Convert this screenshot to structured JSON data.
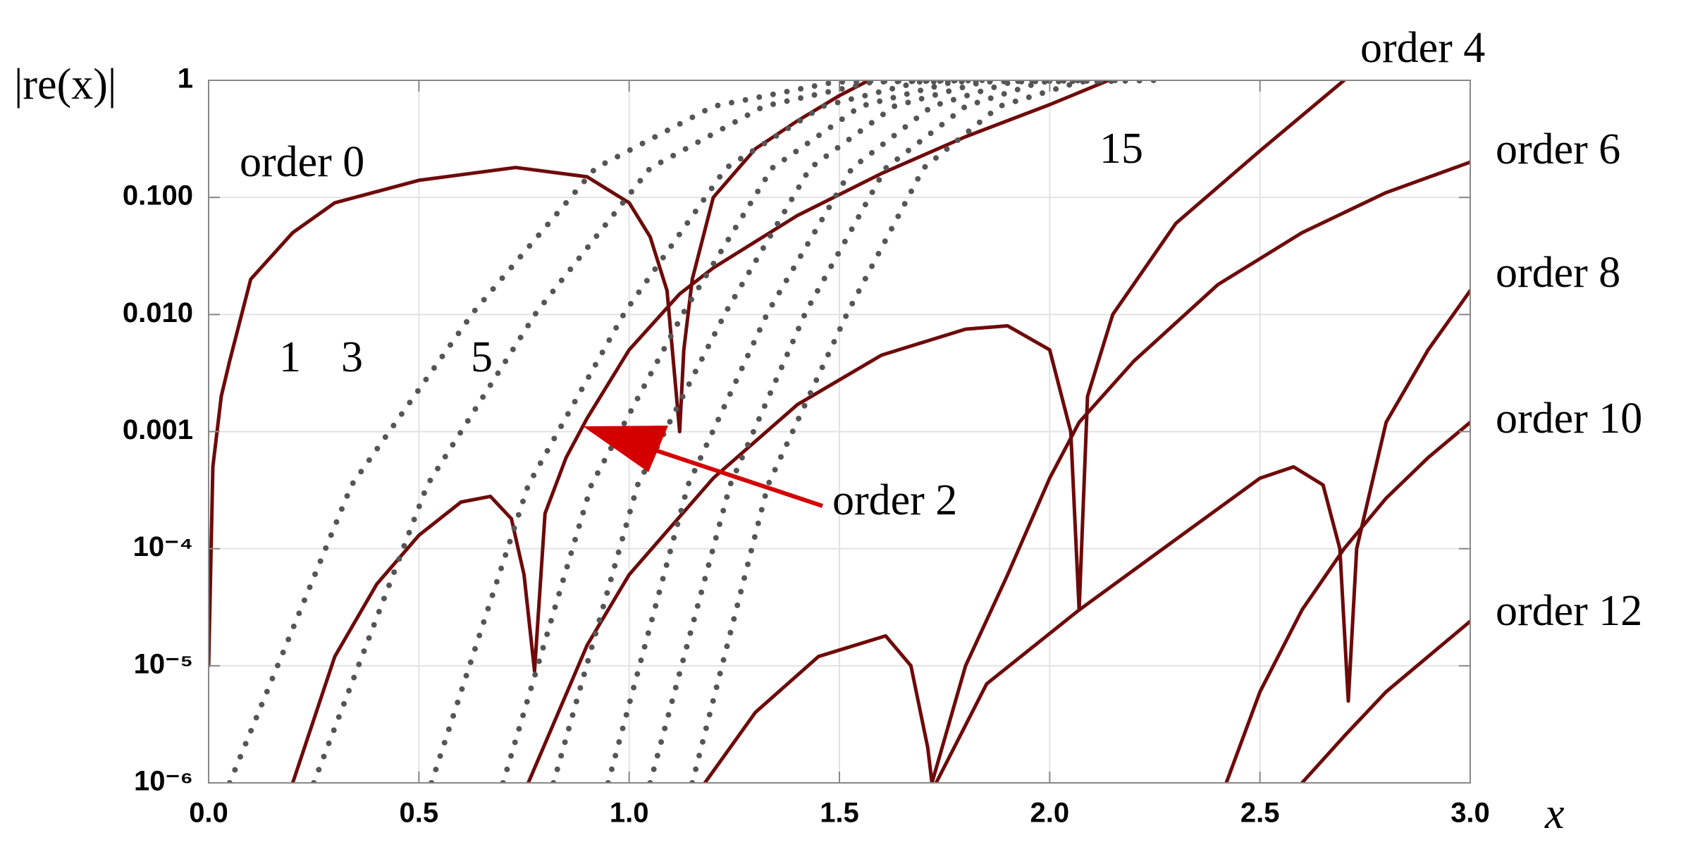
{
  "chart_data": {
    "type": "line",
    "y_label": "|re(x)|",
    "x_label": "x",
    "log_y": true,
    "grid": true,
    "xlim": [
      0,
      3
    ],
    "ylim": [
      1e-06,
      1
    ],
    "xticks": [
      {
        "value": 0,
        "label": "0.0"
      },
      0.5,
      {
        "value": 1,
        "label": "1.0"
      },
      1.5,
      {
        "value": 2,
        "label": "2.0"
      },
      2.5,
      {
        "value": 3,
        "label": "3.0"
      }
    ],
    "yticks": [
      {
        "value": 1e-06,
        "label": "10⁻⁶"
      },
      {
        "value": 1e-05,
        "label": "10⁻⁵"
      },
      {
        "value": 0.0001,
        "label": "10⁻⁴"
      },
      0.001,
      {
        "value": 0.01,
        "label": "0.010"
      },
      {
        "value": 0.1,
        "label": "0.100"
      },
      1
    ],
    "series": [
      {
        "name": "order 0",
        "color": "#6e0a0a",
        "line_style": "solid",
        "x": [
          0,
          0.01,
          0.03,
          0.05,
          0.1,
          0.2,
          0.3,
          0.5,
          0.73,
          0.9,
          1.0,
          1.05,
          1.09,
          1.12,
          1.13,
          1.15,
          1.2,
          1.3,
          1.4,
          1.5,
          1.57
        ],
        "values": [
          1e-05,
          0.0005,
          0.002,
          0.004,
          0.02,
          0.05,
          0.09,
          0.14,
          0.18,
          0.15,
          0.09,
          0.046,
          0.016,
          0.001,
          0.005,
          0.02,
          0.1,
          0.26,
          0.45,
          0.74,
          1
        ]
      },
      {
        "name": "order 2",
        "color": "#6e0a0a",
        "line_style": "solid",
        "x": [
          0.2,
          0.3,
          0.4,
          0.5,
          0.6,
          0.67,
          0.72,
          0.75,
          0.775,
          0.8,
          0.85,
          0.9,
          1.0,
          1.12,
          1.2,
          1.4,
          1.6,
          1.8,
          2.0,
          2.14
        ],
        "values": [
          1e-06,
          1.2e-05,
          5e-05,
          0.00013,
          0.00025,
          0.00028,
          0.00018,
          6e-05,
          9e-06,
          0.0002,
          0.0006,
          0.0013,
          0.005,
          0.015,
          0.025,
          0.07,
          0.16,
          0.33,
          0.62,
          1
        ]
      },
      {
        "name": "order 4",
        "color": "#6e0a0a",
        "line_style": "solid",
        "x": [
          0.76,
          0.9,
          1.0,
          1.2,
          1.4,
          1.6,
          1.8,
          1.9,
          2.0,
          2.05,
          2.07,
          2.09,
          2.15,
          2.3,
          2.5,
          2.7
        ],
        "values": [
          1e-06,
          1.5e-05,
          6e-05,
          0.0004,
          0.0017,
          0.0045,
          0.0075,
          0.008,
          0.005,
          0.001,
          3e-05,
          0.002,
          0.01,
          0.06,
          0.25,
          1
        ]
      },
      {
        "name": "order 6",
        "color": "#6e0a0a",
        "line_style": "solid",
        "x": [
          1.18,
          1.3,
          1.45,
          1.61,
          1.67,
          1.71,
          1.72,
          1.8,
          1.9,
          2.0,
          2.07,
          2.2,
          2.4,
          2.6,
          2.8,
          3.0
        ],
        "values": [
          1e-06,
          4e-06,
          1.2e-05,
          1.8e-05,
          1e-05,
          2e-06,
          1e-06,
          1e-05,
          6e-05,
          0.0004,
          0.0012,
          0.004,
          0.018,
          0.05,
          0.11,
          0.2
        ]
      },
      {
        "name": "order 8",
        "color": "#6e0a0a",
        "line_style": "solid",
        "x": [
          1.73,
          1.85,
          2.07,
          2.3,
          2.5,
          2.58,
          2.65,
          2.69,
          2.71,
          2.73,
          2.8,
          2.9,
          3.0
        ],
        "values": [
          1e-06,
          7e-06,
          3e-05,
          0.00012,
          0.0004,
          0.0005,
          0.00035,
          0.0001,
          5e-06,
          0.0001,
          0.0012,
          0.005,
          0.016
        ]
      },
      {
        "name": "order 10",
        "color": "#6e0a0a",
        "line_style": "solid",
        "x": [
          2.42,
          2.5,
          2.6,
          2.7,
          2.8,
          2.9,
          3.0
        ],
        "values": [
          1e-06,
          6e-06,
          3e-05,
          0.0001,
          0.00027,
          0.0006,
          0.0012
        ]
      },
      {
        "name": "order 12",
        "color": "#6e0a0a",
        "line_style": "solid",
        "x": [
          2.6,
          2.7,
          2.8,
          2.9,
          3.0
        ],
        "values": [
          1e-06,
          2.5e-06,
          6e-06,
          1.2e-05,
          2.4e-05
        ]
      },
      {
        "name": "1",
        "color": "#555555",
        "line_style": "dotted",
        "x": [
          0.05,
          0.34,
          0.63,
          0.92,
          1.2,
          1.49,
          1.78
        ],
        "values": [
          1e-06,
          0.00035,
          0.0105,
          0.178,
          0.6,
          0.97,
          1
        ]
      },
      {
        "name": "3",
        "color": "#555555",
        "line_style": "dotted",
        "x": [
          0.25,
          0.52,
          0.78,
          1.05,
          1.32,
          1.58,
          1.85
        ],
        "values": [
          1e-06,
          0.00035,
          0.0105,
          0.178,
          0.6,
          0.97,
          1
        ]
      },
      {
        "name": "5",
        "color": "#555555",
        "line_style": "dotted",
        "x": [
          0.53,
          0.76,
          0.99,
          1.23,
          1.46,
          1.69,
          1.92
        ],
        "values": [
          1e-06,
          0.00035,
          0.0105,
          0.178,
          0.6,
          0.97,
          1
        ]
      },
      {
        "color": "#555555",
        "line_style": "dotted",
        "x": [
          0.7,
          0.91,
          1.13,
          1.34,
          1.55,
          1.77,
          1.98
        ],
        "values": [
          1e-06,
          0.00035,
          0.0105,
          0.178,
          0.6,
          0.97,
          1
        ]
      },
      {
        "color": "#555555",
        "line_style": "dotted",
        "x": [
          0.82,
          1.02,
          1.23,
          1.43,
          1.63,
          1.84,
          2.04
        ],
        "values": [
          1e-06,
          0.00035,
          0.0105,
          0.178,
          0.6,
          0.97,
          1
        ]
      },
      {
        "color": "#555555",
        "line_style": "dotted",
        "x": [
          0.95,
          1.14,
          1.33,
          1.53,
          1.72,
          1.91,
          2.1
        ],
        "values": [
          1e-06,
          0.00035,
          0.0105,
          0.178,
          0.6,
          0.97,
          1
        ]
      },
      {
        "color": "#555555",
        "line_style": "dotted",
        "x": [
          1.05,
          1.24,
          1.42,
          1.61,
          1.8,
          1.98,
          2.17
        ],
        "values": [
          1e-06,
          0.00035,
          0.0105,
          0.178,
          0.6,
          0.97,
          1
        ]
      },
      {
        "name": "15",
        "color": "#555555",
        "line_style": "dotted",
        "x": [
          1.15,
          1.33,
          1.52,
          1.7,
          1.88,
          2.07,
          2.25
        ],
        "values": [
          1e-06,
          0.00035,
          0.0105,
          0.178,
          0.6,
          0.97,
          1
        ]
      }
    ]
  }
}
